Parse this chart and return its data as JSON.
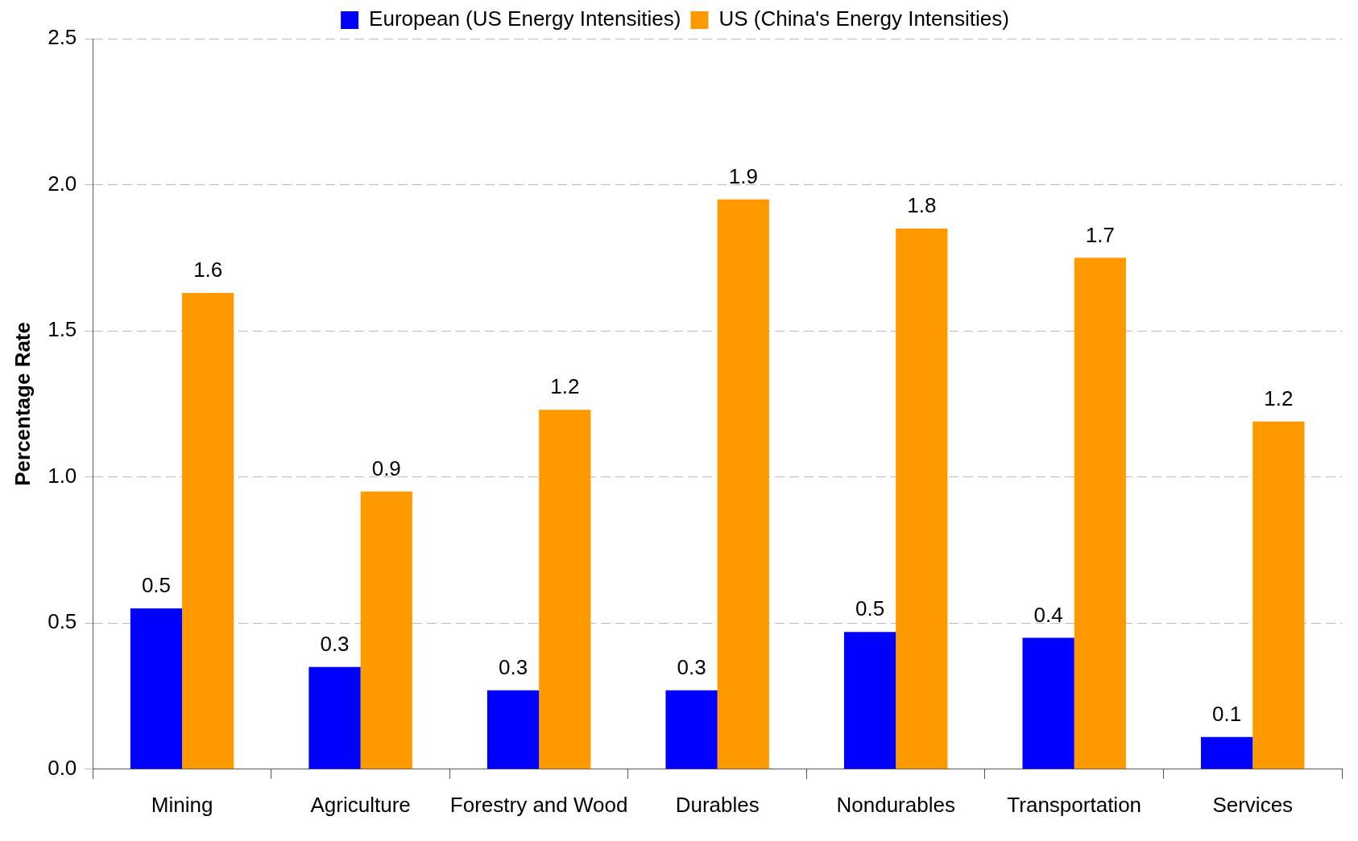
{
  "chart_data": {
    "type": "bar",
    "ylabel": "Percentage Rate",
    "categories": [
      "Mining",
      "Agriculture",
      "Forestry and Wood",
      "Durables",
      "Nondurables",
      "Transportation",
      "Services"
    ],
    "series": [
      {
        "name": "European (US Energy Intensities)",
        "color": "#0000ff",
        "values": [
          0.55,
          0.35,
          0.27,
          0.27,
          0.47,
          0.45,
          0.11
        ],
        "value_labels": [
          "0.5",
          "0.3",
          "0.3",
          "0.3",
          "0.5",
          "0.4",
          "0.1"
        ]
      },
      {
        "name": "US (China's Energy Intensities)",
        "color": "#ff9900",
        "values": [
          1.63,
          0.95,
          1.23,
          1.95,
          1.85,
          1.75,
          1.19
        ],
        "value_labels": [
          "1.6",
          "0.9",
          "1.2",
          "1.9",
          "1.8",
          "1.7",
          "1.2"
        ]
      }
    ],
    "ylim": [
      0,
      2.5
    ],
    "yticks": [
      {
        "value": 0,
        "label": "0.0"
      },
      {
        "value": 0.5,
        "label": "0.5"
      },
      {
        "value": 1,
        "label": "1.0"
      },
      {
        "value": 1.5,
        "label": "1.5"
      },
      {
        "value": 2,
        "label": "2.0"
      },
      {
        "value": 2.5,
        "label": "2.5"
      }
    ],
    "grid": "y",
    "legend": "top"
  }
}
